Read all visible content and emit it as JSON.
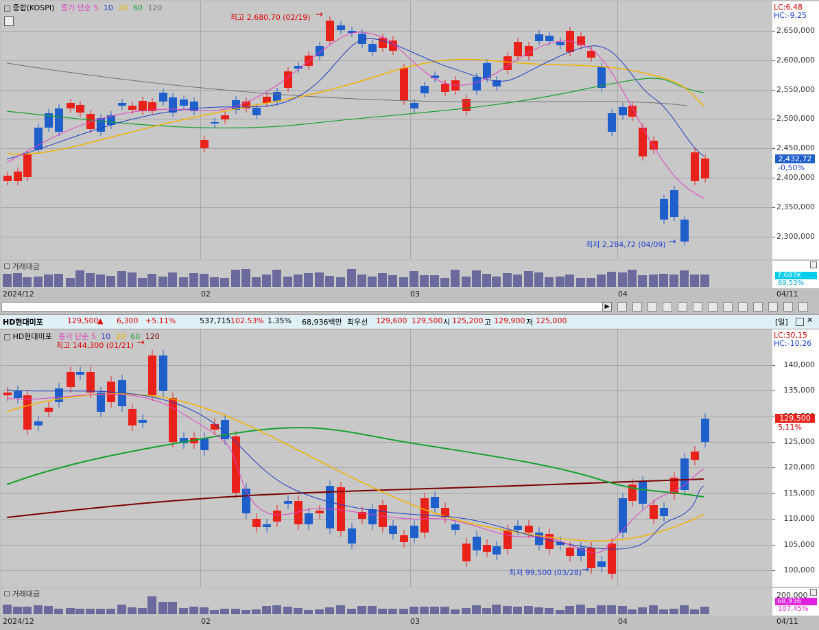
{
  "top": {
    "legend": {
      "name": "종합(KOSPI)",
      "sma": "종가 단순 5",
      "p10": "10",
      "p20": "20",
      "p60": "60",
      "p120": "120"
    },
    "lc": "LC:6,48",
    "hc": "HC:-9,25",
    "high_note": "최고 2,680,70 (02/19)",
    "low_note": "최저 2,284,72 (04/09)",
    "last_price": "2,432,72",
    "last_change": "-0,50%",
    "y_ticks": [
      "2,650,000",
      "2,600,000",
      "2,550,000",
      "2,500,000",
      "2,450,000",
      "2,400,000",
      "2,350,000",
      "2,300,000"
    ],
    "volume_label": "거래대금",
    "volume_value": "7,687K",
    "volume_pct": "69,53%",
    "x_labels": [
      "2024/12",
      "02",
      "03",
      "04",
      "04/11"
    ]
  },
  "ticker": {
    "name": "HD현대미포",
    "price": "129,500",
    "arrow": "▲",
    "change": "6,300",
    "change_pct": "+5.11%",
    "volume": "537,715",
    "vol_ratio": "102.53%",
    "turnover": "1.35%",
    "amount": "68,936백만",
    "ask_label": "최우선",
    "ask": "129,600",
    "bid": "129,500",
    "open_label": "시",
    "open": "125,200",
    "high_label": "고",
    "high": "129,900",
    "low_label": "저",
    "low": "125,000",
    "period_btn": "[일]"
  },
  "bottom": {
    "legend": {
      "name": "HD현대미포",
      "sma": "종가 단순 5",
      "p10": "10",
      "p20": "20",
      "p60": "60",
      "p120": "120"
    },
    "lc": "LC:30,15",
    "hc": "HC:-10,26",
    "high_note": "최고 144,300 (01/21)",
    "low_note": "최저 99,500 (03/28)",
    "last_price": "129,500",
    "last_change": "5,11%",
    "y_ticks": [
      "140,000",
      "135,000",
      "130,000",
      "125,000",
      "120,000",
      "115,000",
      "110,000",
      "105,000",
      "100,000"
    ],
    "volume_label": "거래대금",
    "vol_ticks": [
      "200,000"
    ],
    "volume_value": "68,936",
    "volume_pct": "107,45%",
    "x_labels": [
      "2024/12",
      "02",
      "03",
      "04",
      "04/11"
    ]
  },
  "colors": {
    "up": "#e8221b",
    "down": "#1f5fcc",
    "ma5": "#e040c0",
    "ma10": "#2040c0",
    "ma20": "#f0b400",
    "ma60": "#18a030",
    "ma120_bottom": "#7a0000",
    "ma120_top": "#707070",
    "volume": "#6a6a9c"
  }
}
